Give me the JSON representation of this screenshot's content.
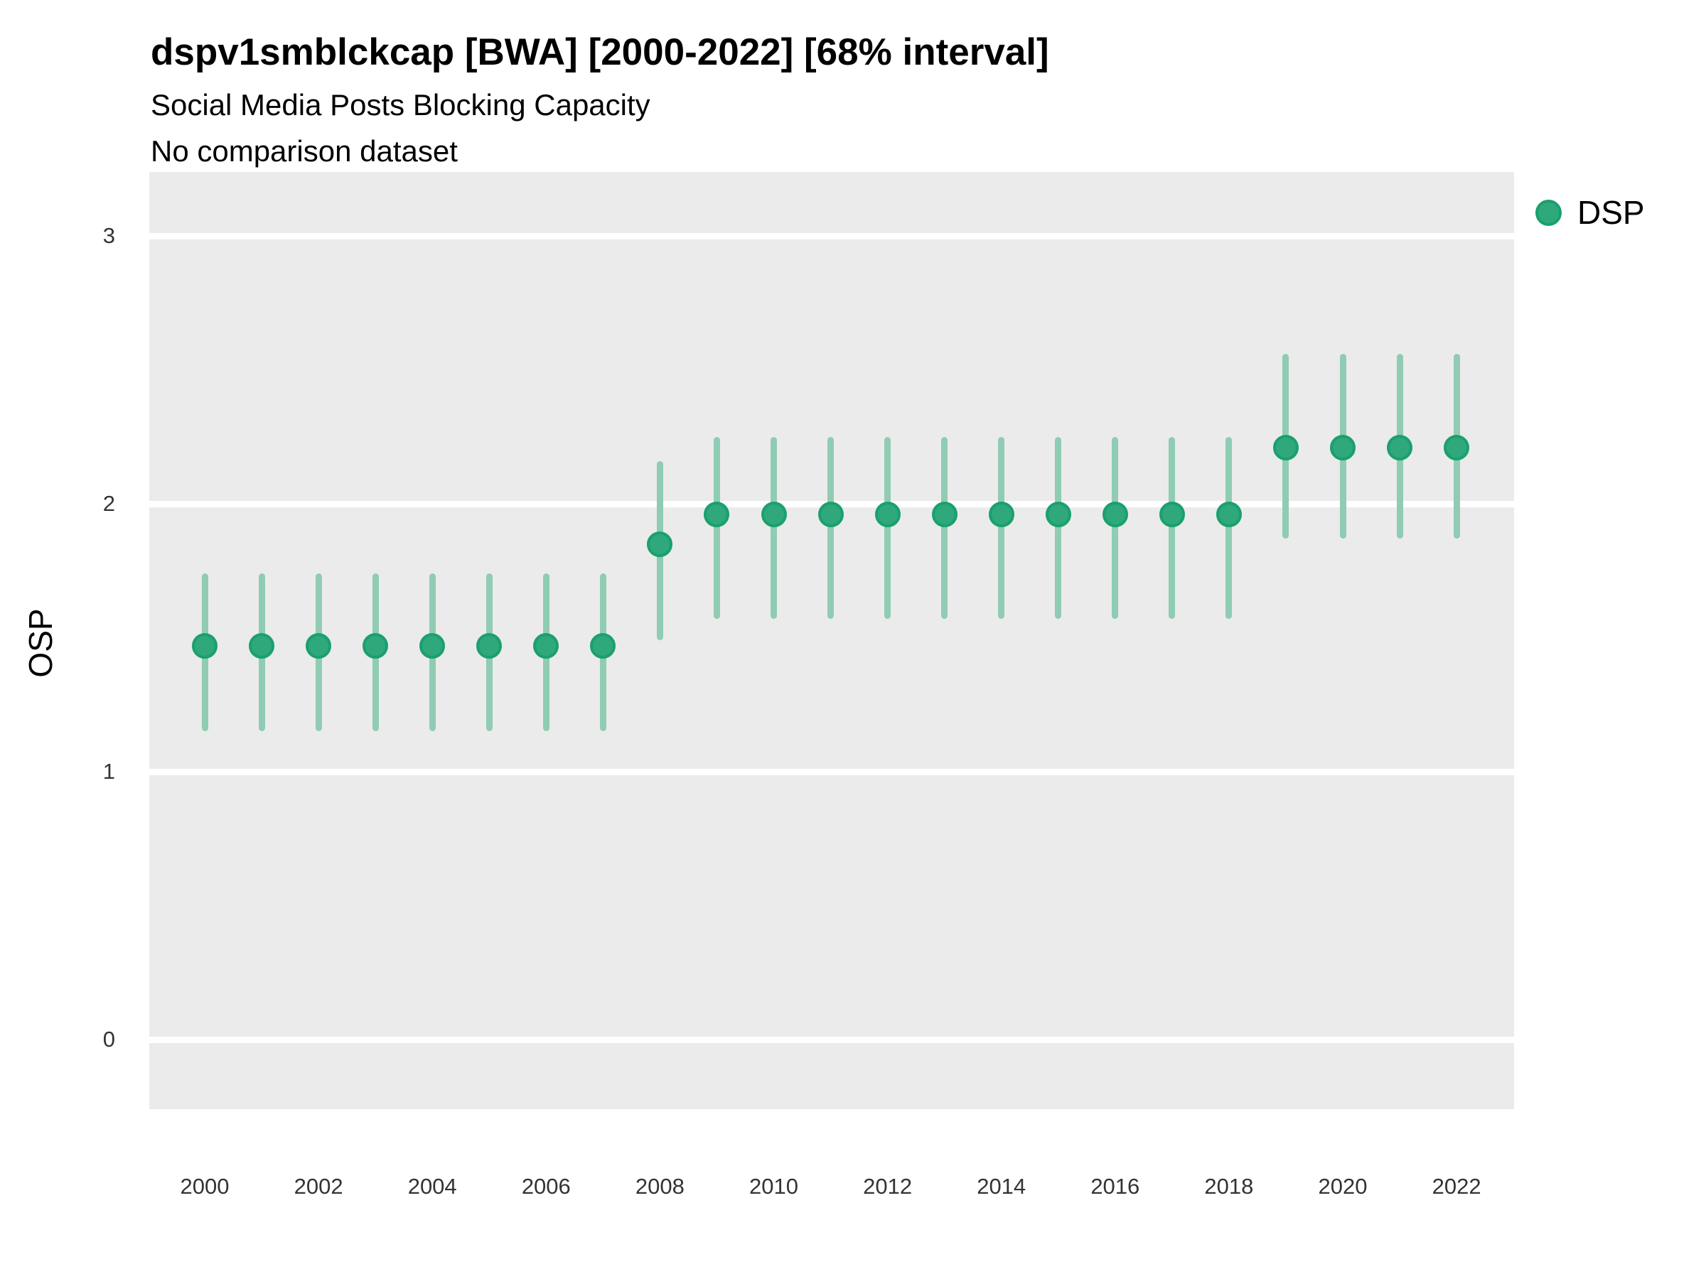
{
  "header": {
    "title": "dspv1smblckcap [BWA] [2000-2022] [68% interval]",
    "subtitle": "Social Media Posts Blocking Capacity",
    "comparison_note": "No comparison dataset"
  },
  "legend": {
    "position": "right",
    "items": [
      {
        "label": "DSP",
        "marker": "circle-icon",
        "color": "#2fa87c"
      }
    ]
  },
  "colors": {
    "point_fill": "#2fa87c",
    "point_ring": "#1aa06e",
    "interval_line": "#8fccb3",
    "panel_bg": "#ebebeb",
    "gridline": "#ffffff",
    "tick_text": "#333333",
    "text": "#000000"
  },
  "axes": {
    "y_title": "OSP",
    "x_title": "",
    "y_ticks": [
      0,
      1,
      2,
      3
    ],
    "x_ticks": [
      2000,
      2002,
      2004,
      2006,
      2008,
      2010,
      2012,
      2014,
      2016,
      2018,
      2020,
      2022
    ],
    "grid": "major-horizontal-only",
    "legend_position": "right"
  },
  "chart_data": {
    "type": "scatter",
    "subtype": "pointrange",
    "title": "dspv1smblckcap [BWA] [2000-2022] [68% interval]",
    "subtitle": "Social Media Posts Blocking Capacity",
    "annotation": "No comparison dataset",
    "xlabel": "",
    "ylabel": "OSP",
    "xlim": [
      1999,
      2023
    ],
    "ylim": [
      -0.25,
      3.25
    ],
    "interval_label": "68% interval",
    "x": [
      2000,
      2001,
      2002,
      2003,
      2004,
      2005,
      2006,
      2007,
      2008,
      2009,
      2010,
      2011,
      2012,
      2013,
      2014,
      2015,
      2016,
      2017,
      2018,
      2019,
      2020,
      2021,
      2022
    ],
    "series": [
      {
        "name": "DSP",
        "estimate": [
          1.47,
          1.47,
          1.47,
          1.47,
          1.47,
          1.47,
          1.47,
          1.47,
          1.85,
          1.96,
          1.96,
          1.96,
          1.96,
          1.96,
          1.96,
          1.96,
          1.96,
          1.96,
          1.96,
          2.21,
          2.21,
          2.21,
          2.21
        ],
        "lower_68": [
          1.15,
          1.15,
          1.15,
          1.15,
          1.15,
          1.15,
          1.15,
          1.15,
          1.49,
          1.57,
          1.57,
          1.57,
          1.57,
          1.57,
          1.57,
          1.57,
          1.57,
          1.57,
          1.57,
          1.87,
          1.87,
          1.87,
          1.87
        ],
        "upper_68": [
          1.74,
          1.74,
          1.74,
          1.74,
          1.74,
          1.74,
          1.74,
          1.74,
          2.16,
          2.25,
          2.25,
          2.25,
          2.25,
          2.25,
          2.25,
          2.25,
          2.25,
          2.25,
          2.25,
          2.56,
          2.56,
          2.56,
          2.56
        ]
      }
    ]
  }
}
